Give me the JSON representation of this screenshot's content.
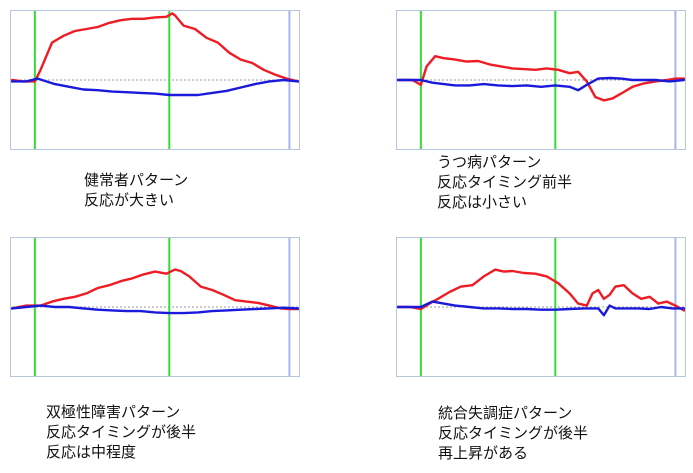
{
  "colors": {
    "response": "#ee1c24",
    "baseline_trace": "#1a1adb",
    "event_marker": "#33dd33",
    "end_marker": "#aab4ee",
    "zero_line": "#999999",
    "frame": "#b8c6dc"
  },
  "chart_data": [
    {
      "type": "line",
      "caption": [
        "健常者パターン",
        "反応が大きい"
      ],
      "ylim": [
        -1,
        1
      ],
      "xlim": [
        0,
        100
      ],
      "event_markers": [
        8,
        55
      ],
      "end_marker": 97,
      "series": [
        {
          "role": "response",
          "x": [
            0,
            4,
            8,
            10,
            14,
            18,
            22,
            26,
            30,
            34,
            38,
            42,
            46,
            50,
            54,
            56,
            57,
            60,
            64,
            68,
            72,
            76,
            80,
            84,
            88,
            92,
            96,
            100
          ],
          "values": [
            0,
            -0.02,
            -0.02,
            0.15,
            0.55,
            0.65,
            0.72,
            0.75,
            0.78,
            0.84,
            0.88,
            0.9,
            0.9,
            0.92,
            0.93,
            0.98,
            0.95,
            0.8,
            0.75,
            0.62,
            0.55,
            0.4,
            0.3,
            0.25,
            0.15,
            0.08,
            0.02,
            -0.02
          ]
        },
        {
          "role": "baseline",
          "x": [
            0,
            5,
            9,
            15,
            20,
            25,
            30,
            35,
            40,
            45,
            50,
            55,
            60,
            65,
            70,
            75,
            80,
            85,
            90,
            95,
            100
          ],
          "values": [
            -0.02,
            -0.02,
            0.02,
            -0.06,
            -0.1,
            -0.14,
            -0.15,
            -0.17,
            -0.18,
            -0.19,
            -0.2,
            -0.22,
            -0.22,
            -0.22,
            -0.19,
            -0.16,
            -0.11,
            -0.06,
            -0.02,
            0,
            -0.02
          ]
        }
      ]
    },
    {
      "type": "line",
      "caption": [
        "うつ病パターン",
        "反応タイミング前半",
        "反応は小さい"
      ],
      "ylim": [
        -1,
        1
      ],
      "xlim": [
        0,
        100
      ],
      "event_markers": [
        8,
        55
      ],
      "end_marker": 97,
      "series": [
        {
          "role": "response",
          "x": [
            0,
            5,
            8,
            10,
            13,
            16,
            20,
            24,
            28,
            32,
            36,
            40,
            44,
            48,
            52,
            56,
            60,
            63,
            66,
            69,
            72,
            75,
            78,
            82,
            86,
            90,
            94,
            97,
            100
          ],
          "values": [
            0,
            0,
            -0.07,
            0.2,
            0.35,
            0.32,
            0.3,
            0.27,
            0.28,
            0.23,
            0.2,
            0.17,
            0.16,
            0.15,
            0.17,
            0.15,
            0.1,
            0.12,
            -0.02,
            -0.25,
            -0.3,
            -0.27,
            -0.2,
            -0.1,
            -0.05,
            -0.02,
            0,
            0.02,
            0.02
          ]
        },
        {
          "role": "baseline",
          "x": [
            0,
            8,
            12,
            16,
            20,
            25,
            30,
            35,
            40,
            45,
            50,
            55,
            60,
            63,
            66,
            70,
            74,
            78,
            82,
            86,
            90,
            95,
            100
          ],
          "values": [
            0,
            0,
            -0.04,
            -0.06,
            -0.08,
            -0.08,
            -0.06,
            -0.08,
            -0.09,
            -0.08,
            -0.1,
            -0.08,
            -0.1,
            -0.15,
            -0.07,
            0.02,
            0.03,
            0.02,
            0,
            0,
            0,
            -0.02,
            0
          ]
        }
      ]
    },
    {
      "type": "line",
      "caption": [
        "双極性障害パターン",
        "反応タイミングが後半",
        "反応は中程度"
      ],
      "ylim": [
        -1,
        1
      ],
      "xlim": [
        0,
        100
      ],
      "event_markers": [
        8,
        55
      ],
      "end_marker": 97,
      "series": [
        {
          "role": "response",
          "x": [
            0,
            5,
            10,
            14,
            18,
            22,
            26,
            30,
            34,
            38,
            42,
            46,
            50,
            54,
            57,
            59,
            62,
            66,
            70,
            74,
            78,
            82,
            86,
            90,
            94,
            97,
            100
          ],
          "values": [
            -0.02,
            0.02,
            0.02,
            0.08,
            0.12,
            0.15,
            0.2,
            0.28,
            0.32,
            0.38,
            0.42,
            0.48,
            0.52,
            0.49,
            0.55,
            0.53,
            0.45,
            0.3,
            0.25,
            0.18,
            0.1,
            0.08,
            0.06,
            0.02,
            -0.02,
            -0.03,
            -0.03
          ]
        },
        {
          "role": "baseline",
          "x": [
            0,
            5,
            10,
            15,
            20,
            25,
            30,
            35,
            40,
            45,
            50,
            55,
            60,
            65,
            70,
            75,
            80,
            85,
            90,
            95,
            100
          ],
          "values": [
            -0.02,
            0,
            0.02,
            0,
            0,
            -0.02,
            -0.04,
            -0.05,
            -0.06,
            -0.06,
            -0.08,
            -0.09,
            -0.09,
            -0.08,
            -0.06,
            -0.05,
            -0.04,
            -0.03,
            -0.02,
            -0.01,
            -0.02
          ]
        }
      ]
    },
    {
      "type": "line",
      "caption": [
        "統合失調症パターン",
        "反応タイミングが後半",
        "再上昇がある"
      ],
      "ylim": [
        -1,
        1
      ],
      "xlim": [
        0,
        100
      ],
      "event_markers": [
        8,
        55
      ],
      "end_marker": 97,
      "series": [
        {
          "role": "response",
          "x": [
            0,
            4,
            8,
            11,
            14,
            18,
            22,
            26,
            30,
            34,
            37,
            40,
            44,
            48,
            52,
            56,
            60,
            63,
            66,
            68,
            70,
            72,
            74,
            76,
            79,
            82,
            85,
            88,
            91,
            94,
            97,
            100
          ],
          "values": [
            0,
            0,
            -0.03,
            0.05,
            0.12,
            0.22,
            0.3,
            0.32,
            0.45,
            0.55,
            0.52,
            0.53,
            0.5,
            0.49,
            0.45,
            0.35,
            0.2,
            0.05,
            0.02,
            0.2,
            0.25,
            0.12,
            0.18,
            0.3,
            0.32,
            0.2,
            0.12,
            0.15,
            0.05,
            0.08,
            0.02,
            -0.05
          ]
        },
        {
          "role": "baseline",
          "x": [
            0,
            5,
            8,
            12,
            16,
            20,
            25,
            30,
            35,
            40,
            45,
            50,
            55,
            60,
            65,
            70,
            72,
            74,
            76,
            80,
            84,
            88,
            92,
            96,
            100
          ],
          "values": [
            0,
            0,
            0,
            0.08,
            0.05,
            0.02,
            0,
            -0.02,
            -0.02,
            -0.03,
            -0.03,
            -0.04,
            -0.04,
            -0.03,
            -0.02,
            -0.02,
            -0.12,
            0.02,
            -0.02,
            -0.02,
            -0.02,
            -0.03,
            0,
            -0.02,
            -0.02
          ]
        }
      ]
    }
  ]
}
